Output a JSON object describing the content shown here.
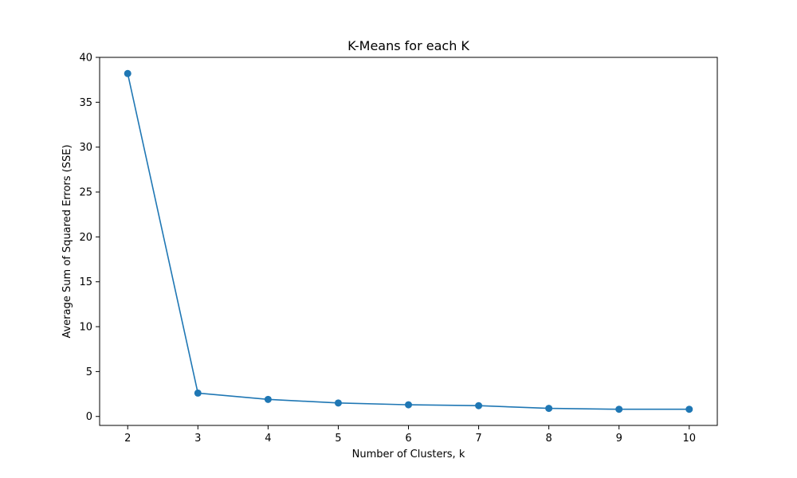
{
  "chart_data": {
    "type": "line",
    "title": "K-Means for each K",
    "xlabel": "Number of Clusters, k",
    "ylabel": "Average Sum of Squared Errors (SSE)",
    "x": [
      2,
      3,
      4,
      5,
      6,
      7,
      8,
      9,
      10
    ],
    "series": [
      {
        "values": [
          38.2,
          2.6,
          1.9,
          1.5,
          1.3,
          1.2,
          0.9,
          0.8,
          0.8
        ],
        "color": "#1f77b4",
        "marker": "circle"
      }
    ],
    "xlim": [
      1.6,
      10.4
    ],
    "ylim": [
      -1.0,
      40.0
    ],
    "xticks": [
      2,
      3,
      4,
      5,
      6,
      7,
      8,
      9,
      10
    ],
    "yticks": [
      0,
      5,
      10,
      15,
      20,
      25,
      30,
      35,
      40
    ],
    "grid": false,
    "legend": "none"
  }
}
